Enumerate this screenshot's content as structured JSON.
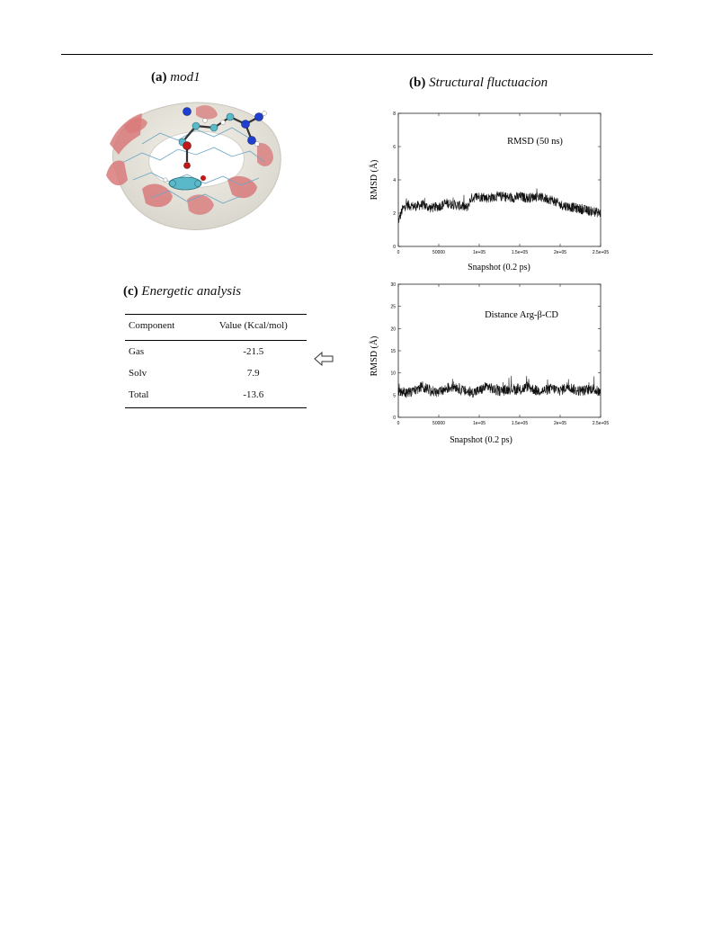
{
  "figure": {
    "panel_a": {
      "letter": "(a)",
      "title": "mod1"
    },
    "panel_b": {
      "letter": "(b)",
      "title": "Structural fluctuacion"
    },
    "panel_c": {
      "letter": "(c)",
      "title": "Energetic analysis"
    }
  },
  "energy_table": {
    "headers": [
      "Component",
      "Value (Kcal/mol)"
    ],
    "rows": [
      {
        "component": "Gas",
        "value": "-21.5"
      },
      {
        "component": "Solv",
        "value": "7.9"
      },
      {
        "component": "Total",
        "value": "-13.6"
      }
    ]
  },
  "chart_data": [
    {
      "type": "line",
      "title": "RMSD (50 ns)",
      "xlabel": "Snapshot (0.2 ps)",
      "ylabel": "RMSD (Å)",
      "xlim": [
        0,
        250000
      ],
      "ylim": [
        0,
        8
      ],
      "xticks": [
        0,
        50000,
        100000,
        150000,
        200000,
        250000
      ],
      "xtick_labels": [
        "0",
        "50000",
        "1e+05",
        "1.5e+05",
        "2e+05",
        "2.5e+05"
      ],
      "yticks": [
        0,
        2,
        4,
        6,
        8
      ],
      "ytick_labels": [
        "0",
        "2",
        "4",
        "6",
        "8"
      ],
      "series": [
        {
          "x": [
            0,
            5000,
            10000,
            20000,
            30000,
            40000,
            50000,
            60000,
            70000,
            80000,
            85000,
            90000,
            100000,
            110000,
            120000,
            130000,
            140000,
            150000,
            160000,
            170000,
            180000,
            190000,
            200000,
            210000,
            220000,
            230000,
            240000,
            250000
          ],
          "y": [
            1.5,
            2.2,
            2.5,
            2.4,
            2.5,
            2.3,
            2.4,
            2.6,
            2.5,
            2.4,
            2.3,
            2.9,
            3.0,
            2.9,
            3.0,
            3.0,
            2.9,
            3.0,
            2.9,
            3.0,
            2.9,
            2.8,
            2.5,
            2.4,
            2.3,
            2.2,
            2.1,
            2.0
          ],
          "noise": 0.3
        }
      ]
    },
    {
      "type": "line",
      "title": "Distance Arg-β-CD",
      "xlabel": "Snapshot (0.2 ps)",
      "ylabel": "RMSD (Å)",
      "xlim": [
        0,
        250000
      ],
      "ylim": [
        0,
        30
      ],
      "xticks": [
        0,
        50000,
        100000,
        150000,
        200000,
        250000
      ],
      "xtick_labels": [
        "0",
        "50000",
        "1e+05",
        "1.5e+05",
        "2e+05",
        "2.5e+05"
      ],
      "yticks": [
        0,
        5,
        10,
        15,
        20,
        25,
        30
      ],
      "ytick_labels": [
        "0",
        "5",
        "10",
        "15",
        "20",
        "25",
        "30"
      ],
      "series": [
        {
          "x": [
            0,
            10000,
            20000,
            30000,
            40000,
            50000,
            60000,
            70000,
            80000,
            90000,
            100000,
            110000,
            120000,
            130000,
            140000,
            150000,
            160000,
            170000,
            180000,
            190000,
            200000,
            210000,
            220000,
            230000,
            240000,
            250000
          ],
          "y": [
            6,
            5.5,
            6,
            7,
            6,
            5.5,
            6.5,
            7,
            6,
            5.5,
            6,
            7,
            6,
            6,
            6.5,
            6,
            7,
            6,
            6,
            6.5,
            6,
            7,
            6,
            6,
            6.5,
            5.5
          ],
          "noise": 1.2
        }
      ]
    }
  ]
}
